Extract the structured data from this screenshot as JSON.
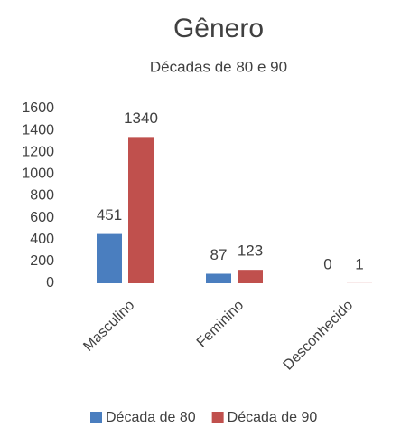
{
  "chart_data": {
    "type": "bar",
    "title": "Gênero",
    "subtitle": "Décadas de 80 e 90",
    "categories": [
      "Masculino",
      "Feminino",
      "Desconhecido"
    ],
    "series": [
      {
        "name": "Década de 80",
        "color": "#4a7ebf",
        "values": [
          451,
          87,
          0
        ]
      },
      {
        "name": "Década de 90",
        "color": "#c0504d",
        "values": [
          1340,
          123,
          1
        ]
      }
    ],
    "ylim": [
      0,
      1600
    ],
    "yticks": [
      0,
      200,
      400,
      600,
      800,
      1000,
      1200,
      1400,
      1600
    ],
    "data_labels": true,
    "legend": "bottom"
  }
}
